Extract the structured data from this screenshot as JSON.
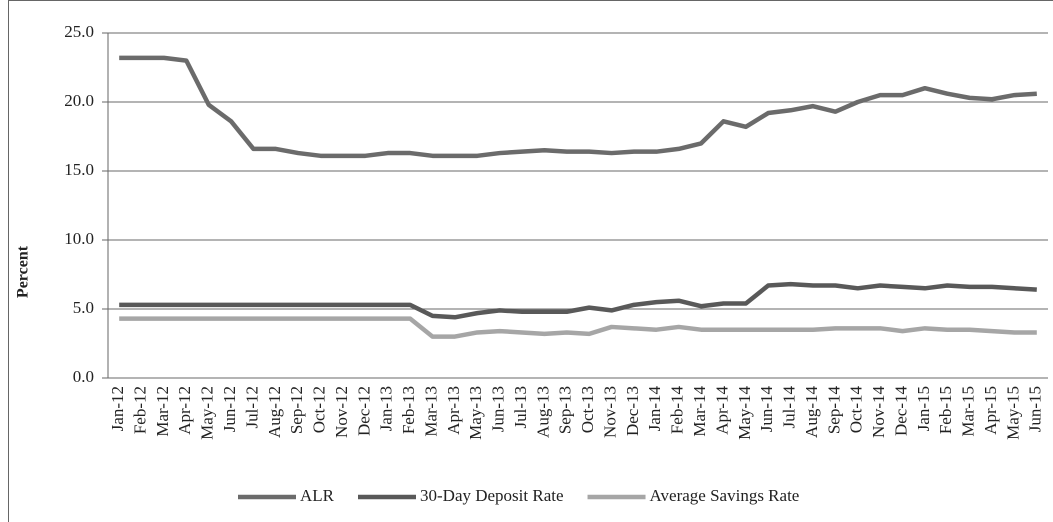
{
  "chart_data": {
    "type": "line",
    "y_label": "Percent",
    "categories": [
      "Jan-12",
      "Feb-12",
      "Mar-12",
      "Apr-12",
      "May-12",
      "Jun-12",
      "Jul-12",
      "Aug-12",
      "Sep-12",
      "Oct-12",
      "Nov-12",
      "Dec-12",
      "Jan-13",
      "Feb-13",
      "Mar-13",
      "Apr-13",
      "May-13",
      "Jun-13",
      "Jul-13",
      "Aug-13",
      "Sep-13",
      "Oct-13",
      "Nov-13",
      "Dec-13",
      "Jan-14",
      "Feb-14",
      "Mar-14",
      "Apr-14",
      "May-14",
      "Jun-14",
      "Jul-14",
      "Aug-14",
      "Sep-14",
      "Oct-14",
      "Nov-14",
      "Dec-14",
      "Jan-15",
      "Feb-15",
      "Mar-15",
      "Apr-15",
      "May-15",
      "Jun-15"
    ],
    "series": [
      {
        "name": "ALR",
        "color": "#6b6b6b",
        "values": [
          23.2,
          23.2,
          23.2,
          23.0,
          19.8,
          18.6,
          16.6,
          16.6,
          16.3,
          16.1,
          16.1,
          16.1,
          16.3,
          16.3,
          16.1,
          16.1,
          16.1,
          16.3,
          16.4,
          16.5,
          16.4,
          16.4,
          16.3,
          16.4,
          16.4,
          16.6,
          17.0,
          18.6,
          18.2,
          19.2,
          19.4,
          19.7,
          19.3,
          20.0,
          20.5,
          20.5,
          21.0,
          20.6,
          20.3,
          20.2,
          20.5,
          20.6
        ]
      },
      {
        "name": "30-Day Deposit Rate",
        "color": "#595959",
        "values": [
          5.3,
          5.3,
          5.3,
          5.3,
          5.3,
          5.3,
          5.3,
          5.3,
          5.3,
          5.3,
          5.3,
          5.3,
          5.3,
          5.3,
          4.5,
          4.4,
          4.7,
          4.9,
          4.8,
          4.8,
          4.8,
          5.1,
          4.9,
          5.3,
          5.5,
          5.6,
          5.2,
          5.4,
          5.4,
          6.7,
          6.8,
          6.7,
          6.7,
          6.5,
          6.7,
          6.6,
          6.5,
          6.7,
          6.6,
          6.6,
          6.5,
          6.4
        ]
      },
      {
        "name": "Average Savings Rate",
        "color": "#a6a6a6",
        "values": [
          4.3,
          4.3,
          4.3,
          4.3,
          4.3,
          4.3,
          4.3,
          4.3,
          4.3,
          4.3,
          4.3,
          4.3,
          4.3,
          4.3,
          3.0,
          3.0,
          3.3,
          3.4,
          3.3,
          3.2,
          3.3,
          3.2,
          3.7,
          3.6,
          3.5,
          3.7,
          3.5,
          3.5,
          3.5,
          3.5,
          3.5,
          3.5,
          3.6,
          3.6,
          3.6,
          3.4,
          3.6,
          3.5,
          3.5,
          3.4,
          3.3,
          3.3
        ]
      }
    ],
    "ylim": [
      0,
      25
    ],
    "yticks": [
      {
        "value": 0,
        "label": "0.0"
      },
      {
        "value": 5,
        "label": "5.0"
      },
      {
        "value": 10,
        "label": "10.0"
      },
      {
        "value": 15,
        "label": "15.0"
      },
      {
        "value": 20,
        "label": "20.0"
      },
      {
        "value": 25,
        "label": "25.0"
      }
    ],
    "grid": true,
    "legend": "bottom"
  }
}
